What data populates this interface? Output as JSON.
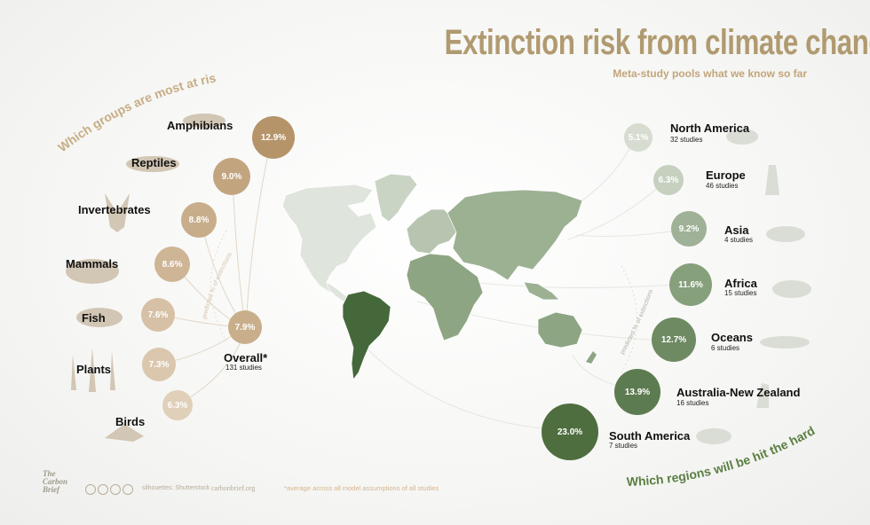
{
  "header": {
    "title": "Extinction risk from climate change",
    "subtitle": "Meta-study pools what we know so far"
  },
  "questions": {
    "groups": "Which groups are most at risk?",
    "regions": "Which regions will be hit the hardest?",
    "predicted_left": "predicted % of extinctions",
    "predicted_right": "predicted % of extinctions"
  },
  "groups": [
    {
      "label": "Amphibians",
      "value": "12.9%"
    },
    {
      "label": "Reptiles",
      "value": "9.0%"
    },
    {
      "label": "Invertebrates",
      "value": "8.8%"
    },
    {
      "label": "Mammals",
      "value": "8.6%"
    },
    {
      "label": "Fish",
      "value": "7.6%"
    },
    {
      "label": "Plants",
      "value": "7.3%"
    },
    {
      "label": "Birds",
      "value": "6.3%"
    }
  ],
  "overall": {
    "label": "Overall*",
    "studies": "131 studies",
    "value": "7.9%"
  },
  "regions": [
    {
      "label": "North America",
      "studies": "32 studies",
      "value": "5.1%"
    },
    {
      "label": "Europe",
      "studies": "46 studies",
      "value": "6.3%"
    },
    {
      "label": "Asia",
      "studies": "4 studies",
      "value": "9.2%"
    },
    {
      "label": "Africa",
      "studies": "15 studies",
      "value": "11.6%"
    },
    {
      "label": "Oceans",
      "studies": "6 studies",
      "value": "12.7%"
    },
    {
      "label": "Australia-New Zealand",
      "studies": "16 studies",
      "value": "13.9%"
    },
    {
      "label": "South America",
      "studies": "7 studies",
      "value": "23.0%"
    }
  ],
  "chart_data": {
    "type": "bubble",
    "groups": {
      "categories": [
        "Amphibians",
        "Reptiles",
        "Invertebrates",
        "Mammals",
        "Fish",
        "Plants",
        "Birds",
        "Overall"
      ],
      "values": [
        12.9,
        9.0,
        8.8,
        8.6,
        7.6,
        7.3,
        6.3,
        7.9
      ]
    },
    "regions": {
      "categories": [
        "North America",
        "Europe",
        "Asia",
        "Africa",
        "Oceans",
        "Australia-New Zealand",
        "South America"
      ],
      "values": [
        5.1,
        6.3,
        9.2,
        11.6,
        12.7,
        13.9,
        23.0
      ],
      "studies": [
        32,
        46,
        4,
        15,
        6,
        16,
        7
      ]
    }
  },
  "footer": {
    "logo": [
      "The",
      "Carbon",
      "Brief"
    ],
    "silhouettes": "silhouettes: Shutterstock",
    "site": "carbonbrief.org",
    "note": "*average across all model assumptions of all studies"
  },
  "colors": {
    "title": "#b09a70",
    "group_dark": "#b7956a",
    "group_light": "#ddccb5",
    "region_light": "#d6dccf",
    "region_dark": "#4f6e40",
    "map_base": "#dfe5dc",
    "map_africa_asia": "#8ea583",
    "map_south_america": "#45683a"
  }
}
